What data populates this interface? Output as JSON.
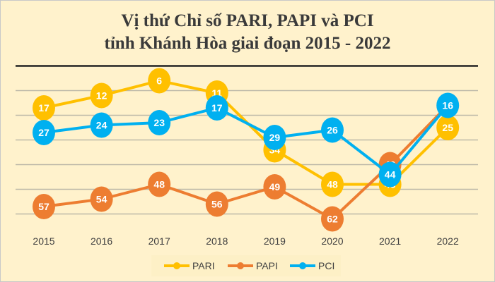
{
  "chart_data": {
    "type": "line",
    "title_line1": "Vị thứ Chỉ số PARI, PAPI và PCI",
    "title_line2": "tỉnh Khánh Hòa giai đoạn 2015 - 2022",
    "xlabel": "",
    "ylabel": "",
    "categories": [
      "2015",
      "2016",
      "2017",
      "2018",
      "2019",
      "2020",
      "2021",
      "2022"
    ],
    "y_reversed": true,
    "ylim": [
      0,
      60
    ],
    "grid": true,
    "legend_position": "bottom",
    "series": [
      {
        "name": "PARI",
        "color": "#ffc000",
        "values": [
          17,
          12,
          6,
          11,
          34,
          48,
          48,
          25
        ],
        "labels": [
          true,
          true,
          true,
          true,
          true,
          true,
          true,
          true
        ]
      },
      {
        "name": "PAPI",
        "color": "#ed7d31",
        "values": [
          57,
          54,
          48,
          56,
          49,
          62,
          40,
          16
        ],
        "labels": [
          true,
          true,
          true,
          true,
          true,
          true,
          true,
          false
        ]
      },
      {
        "name": "PCI",
        "color": "#00b0f0",
        "values": [
          27,
          24,
          23,
          17,
          29,
          26,
          44,
          16
        ],
        "labels": [
          true,
          true,
          true,
          true,
          true,
          true,
          true,
          true
        ]
      }
    ]
  }
}
